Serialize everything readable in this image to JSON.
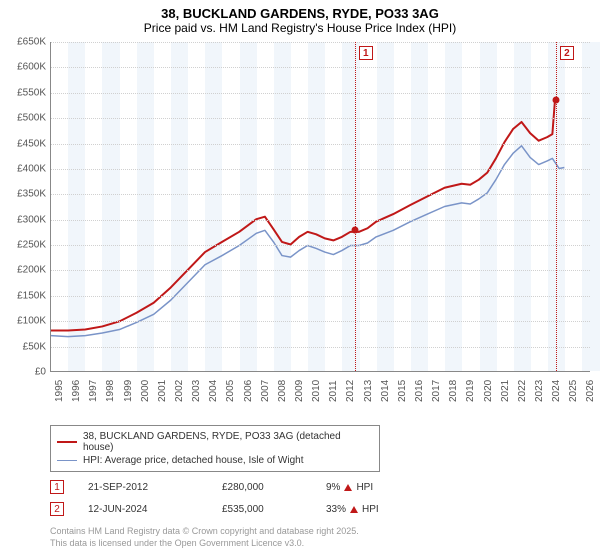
{
  "title": {
    "main": "38, BUCKLAND GARDENS, RYDE, PO33 3AG",
    "sub": "Price paid vs. HM Land Registry's House Price Index (HPI)"
  },
  "chart": {
    "type": "line",
    "background_color": "#ffffff",
    "grid_color": "#d0d0d0",
    "axis_color": "#888888",
    "band_color": "#e8f0f8",
    "xlim": [
      1995,
      2026.5
    ],
    "ylim": [
      0,
      650000
    ],
    "ytick_step": 50000,
    "x_ticks": [
      1995,
      1996,
      1997,
      1998,
      1999,
      2000,
      2001,
      2002,
      2003,
      2004,
      2005,
      2006,
      2007,
      2008,
      2009,
      2010,
      2011,
      2012,
      2013,
      2014,
      2015,
      2016,
      2017,
      2018,
      2019,
      2020,
      2021,
      2022,
      2023,
      2024,
      2025,
      2026
    ],
    "y_tick_labels": [
      "£0",
      "£50K",
      "£100K",
      "£150K",
      "£200K",
      "£250K",
      "£300K",
      "£350K",
      "£400K",
      "£450K",
      "£500K",
      "£550K",
      "£600K",
      "£650K"
    ],
    "alternating_bands": true,
    "series": [
      {
        "name": "pp",
        "color": "#c01818",
        "width": 2,
        "points": [
          [
            1995,
            80000
          ],
          [
            1996,
            80000
          ],
          [
            1997,
            82000
          ],
          [
            1998,
            88000
          ],
          [
            1999,
            98000
          ],
          [
            2000,
            115000
          ],
          [
            2001,
            135000
          ],
          [
            2002,
            165000
          ],
          [
            2003,
            200000
          ],
          [
            2004,
            235000
          ],
          [
            2005,
            255000
          ],
          [
            2006,
            275000
          ],
          [
            2007,
            300000
          ],
          [
            2007.5,
            305000
          ],
          [
            2008,
            280000
          ],
          [
            2008.5,
            255000
          ],
          [
            2009,
            250000
          ],
          [
            2009.5,
            265000
          ],
          [
            2010,
            275000
          ],
          [
            2010.5,
            270000
          ],
          [
            2011,
            262000
          ],
          [
            2011.5,
            258000
          ],
          [
            2012,
            265000
          ],
          [
            2012.5,
            275000
          ],
          [
            2013,
            275000
          ],
          [
            2013.5,
            282000
          ],
          [
            2014,
            295000
          ],
          [
            2015,
            310000
          ],
          [
            2016,
            328000
          ],
          [
            2017,
            345000
          ],
          [
            2018,
            362000
          ],
          [
            2019,
            370000
          ],
          [
            2019.5,
            368000
          ],
          [
            2020,
            378000
          ],
          [
            2020.5,
            392000
          ],
          [
            2021,
            420000
          ],
          [
            2021.5,
            452000
          ],
          [
            2022,
            478000
          ],
          [
            2022.5,
            492000
          ],
          [
            2023,
            470000
          ],
          [
            2023.5,
            455000
          ],
          [
            2024,
            462000
          ],
          [
            2024.3,
            468000
          ],
          [
            2024.45,
            535000
          ]
        ]
      },
      {
        "name": "hpi",
        "color": "#7a94c8",
        "width": 1.5,
        "points": [
          [
            1995,
            70000
          ],
          [
            1996,
            68000
          ],
          [
            1997,
            70000
          ],
          [
            1998,
            75000
          ],
          [
            1999,
            82000
          ],
          [
            2000,
            96000
          ],
          [
            2001,
            112000
          ],
          [
            2002,
            140000
          ],
          [
            2003,
            175000
          ],
          [
            2004,
            210000
          ],
          [
            2005,
            228000
          ],
          [
            2006,
            248000
          ],
          [
            2007,
            272000
          ],
          [
            2007.5,
            278000
          ],
          [
            2008,
            255000
          ],
          [
            2008.5,
            228000
          ],
          [
            2009,
            225000
          ],
          [
            2009.5,
            238000
          ],
          [
            2010,
            248000
          ],
          [
            2010.5,
            242000
          ],
          [
            2011,
            235000
          ],
          [
            2011.5,
            230000
          ],
          [
            2012,
            238000
          ],
          [
            2012.5,
            248000
          ],
          [
            2013,
            248000
          ],
          [
            2013.5,
            253000
          ],
          [
            2014,
            265000
          ],
          [
            2015,
            278000
          ],
          [
            2016,
            295000
          ],
          [
            2017,
            310000
          ],
          [
            2018,
            325000
          ],
          [
            2019,
            332000
          ],
          [
            2019.5,
            330000
          ],
          [
            2020,
            340000
          ],
          [
            2020.5,
            352000
          ],
          [
            2021,
            378000
          ],
          [
            2021.5,
            408000
          ],
          [
            2022,
            430000
          ],
          [
            2022.5,
            445000
          ],
          [
            2023,
            422000
          ],
          [
            2023.5,
            408000
          ],
          [
            2024,
            415000
          ],
          [
            2024.3,
            420000
          ],
          [
            2024.7,
            400000
          ],
          [
            2025,
            402000
          ]
        ]
      }
    ],
    "markers": [
      {
        "id": "1",
        "x": 2012.72,
        "y": 280000,
        "color": "#c01818"
      },
      {
        "id": "2",
        "x": 2024.45,
        "y": 535000,
        "color": "#c01818"
      }
    ]
  },
  "legend": {
    "items": [
      {
        "label": "38, BUCKLAND GARDENS, RYDE, PO33 3AG (detached house)",
        "color": "#c01818",
        "width": 2
      },
      {
        "label": "HPI: Average price, detached house, Isle of Wight",
        "color": "#7a94c8",
        "width": 1.5
      }
    ]
  },
  "events": [
    {
      "id": "1",
      "date": "21-SEP-2012",
      "price": "£280,000",
      "pct": "9%",
      "suffix": "HPI"
    },
    {
      "id": "2",
      "date": "12-JUN-2024",
      "price": "£535,000",
      "pct": "33%",
      "suffix": "HPI"
    }
  ],
  "copyright": {
    "line1": "Contains HM Land Registry data © Crown copyright and database right 2025.",
    "line2": "This data is licensed under the Open Government Licence v3.0."
  }
}
